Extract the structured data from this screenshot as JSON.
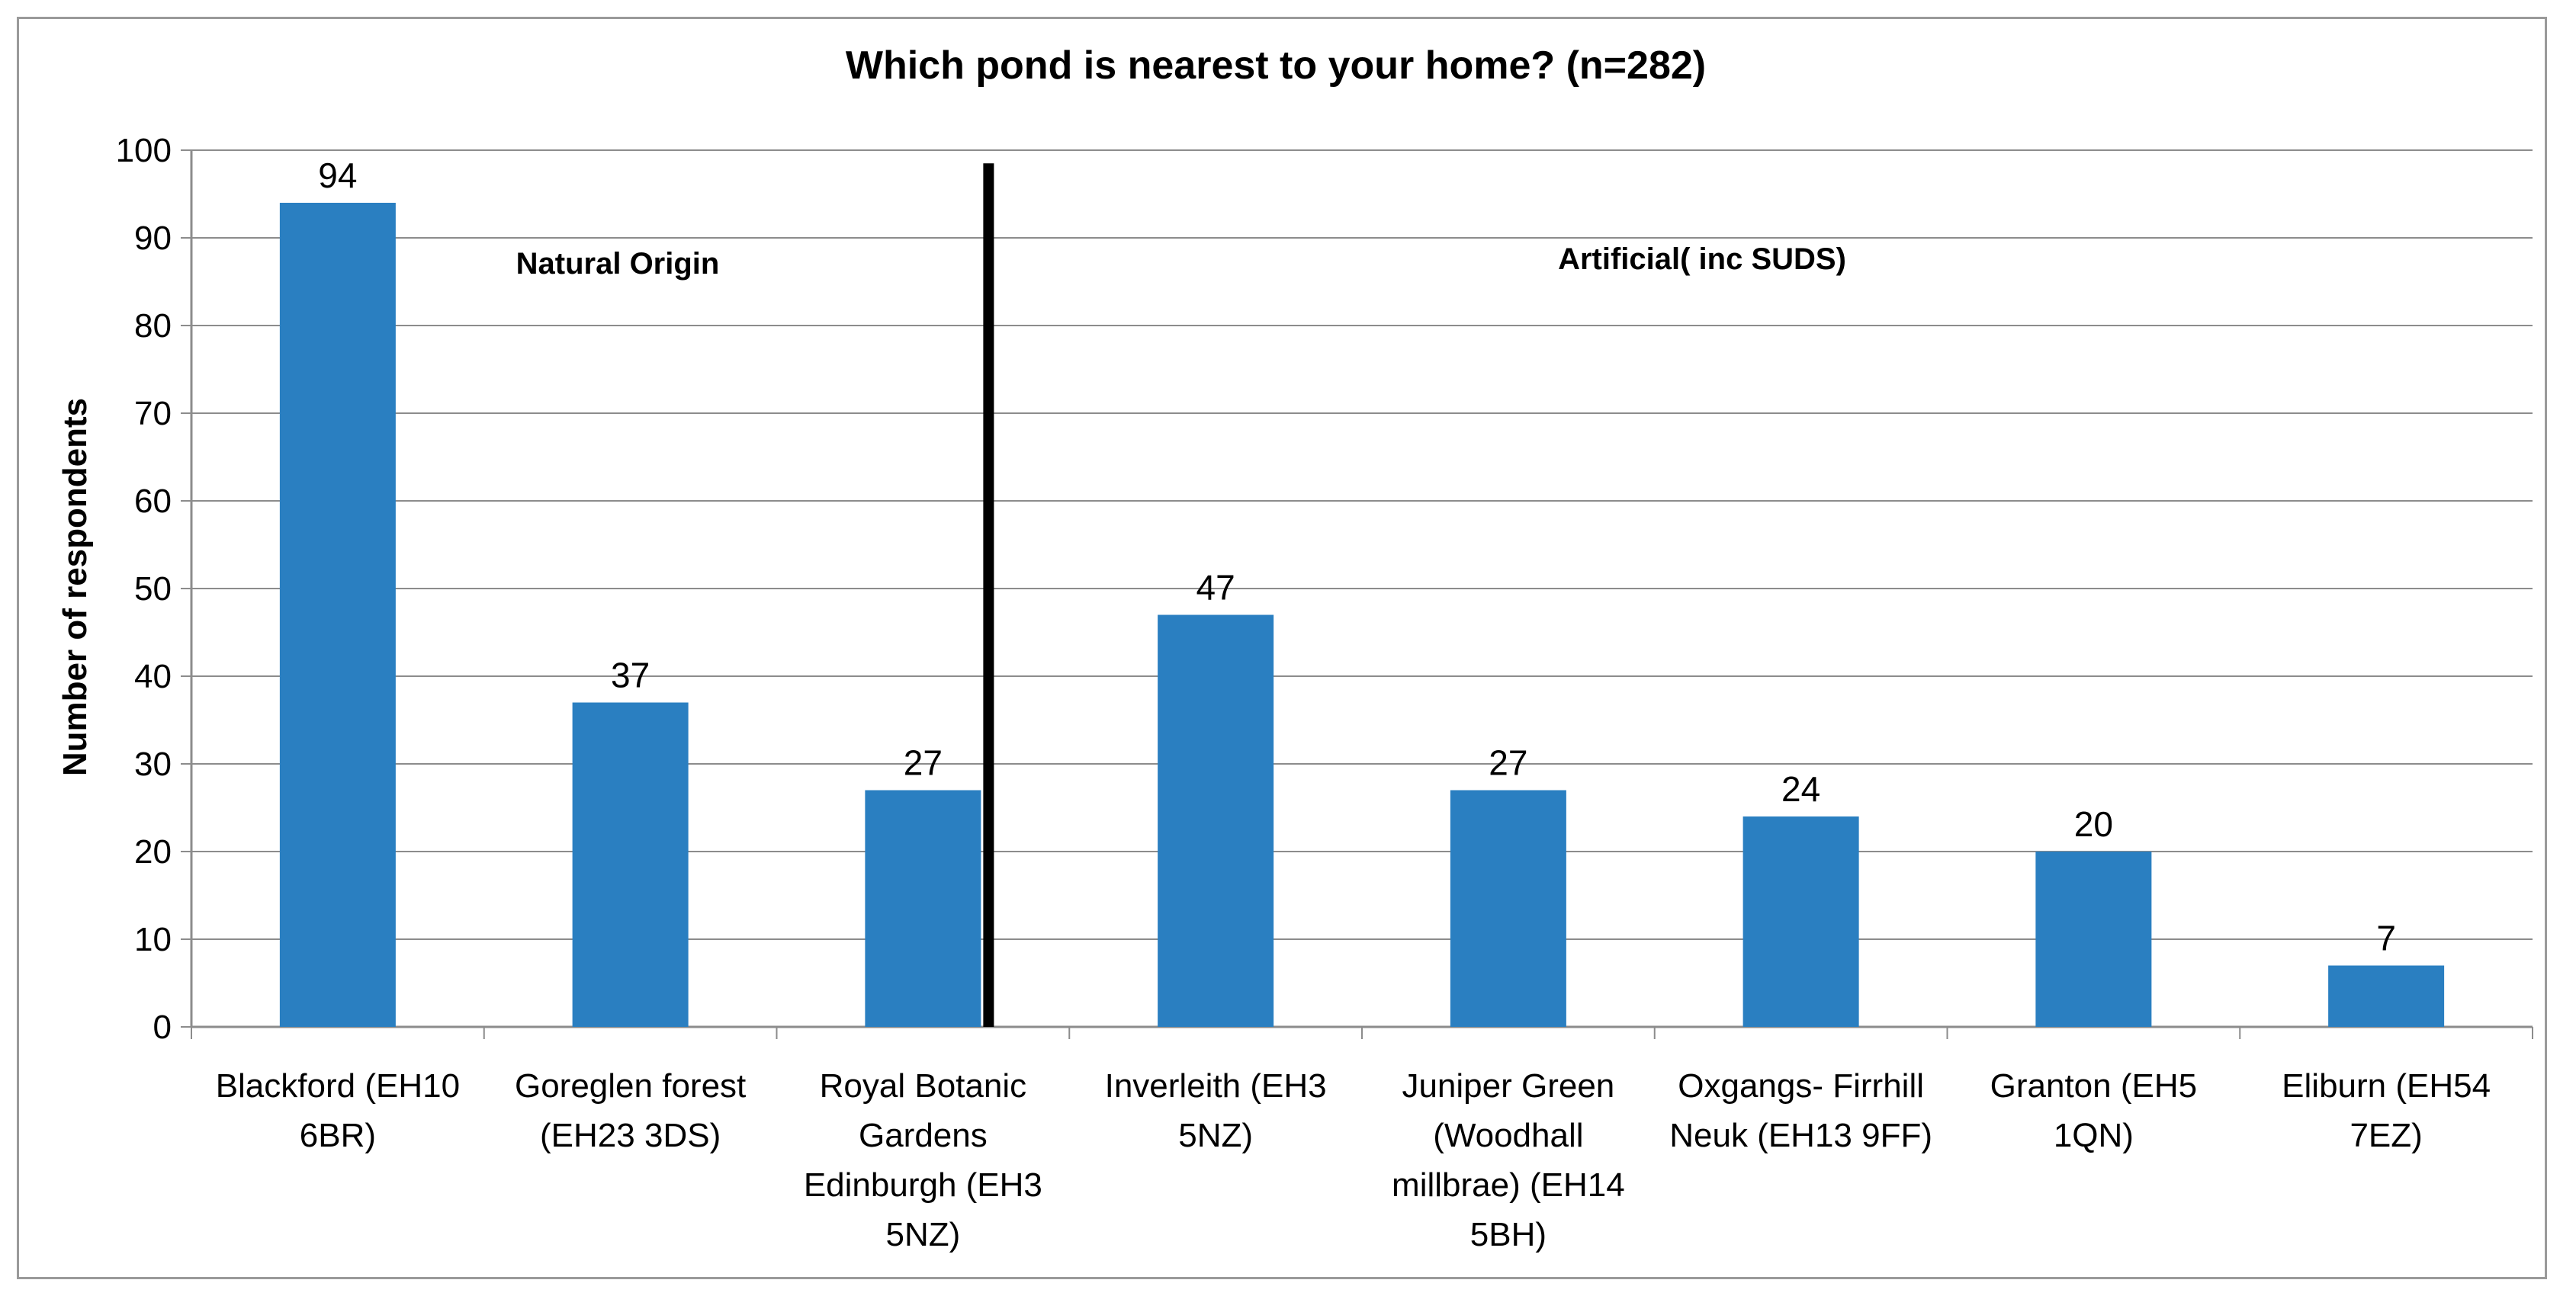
{
  "chart_data": {
    "type": "bar",
    "title": "Which pond is nearest to your home? (n=282)",
    "xlabel": "",
    "ylabel": "Number of respondents",
    "ylim": [
      0,
      100
    ],
    "yticks": [
      0,
      10,
      20,
      30,
      40,
      50,
      60,
      70,
      80,
      90,
      100
    ],
    "grid": true,
    "legend": "none",
    "categories": [
      "Blackford (EH10 6BR)",
      "Goreglen forest (EH23 3DS)",
      "Royal Botanic Gardens Edinburgh (EH3 5NZ)",
      "Inverleith (EH3 5NZ)",
      "Juniper Green (Woodhall millbrae) (EH14 5BH)",
      "Oxgangs- Firrhill Neuk (EH13 9FF)",
      "Granton (EH5 1QN)",
      "Eliburn (EH54 7EZ)"
    ],
    "category_label_lines": [
      [
        "Blackford (EH10",
        "6BR)"
      ],
      [
        "Goreglen forest",
        "(EH23 3DS)"
      ],
      [
        "Royal Botanic",
        "Gardens",
        "Edinburgh (EH3",
        "5NZ)"
      ],
      [
        "Inverleith (EH3",
        "5NZ)"
      ],
      [
        "Juniper Green",
        "(Woodhall",
        "millbrae) (EH14",
        "5BH)"
      ],
      [
        "Oxgangs- Firrhill",
        "Neuk (EH13 9FF)"
      ],
      [
        "Granton (EH5",
        "1QN)"
      ],
      [
        "Eliburn (EH54",
        "7EZ)"
      ]
    ],
    "values": [
      94,
      37,
      27,
      47,
      27,
      24,
      20,
      7
    ],
    "bar_color": "#2a7fc1",
    "annotations": [
      {
        "text": "Natural Origin"
      },
      {
        "text": "Artificial( inc SUDS)"
      }
    ],
    "divider_after_category_index": 2,
    "divider_color": "#000000"
  }
}
